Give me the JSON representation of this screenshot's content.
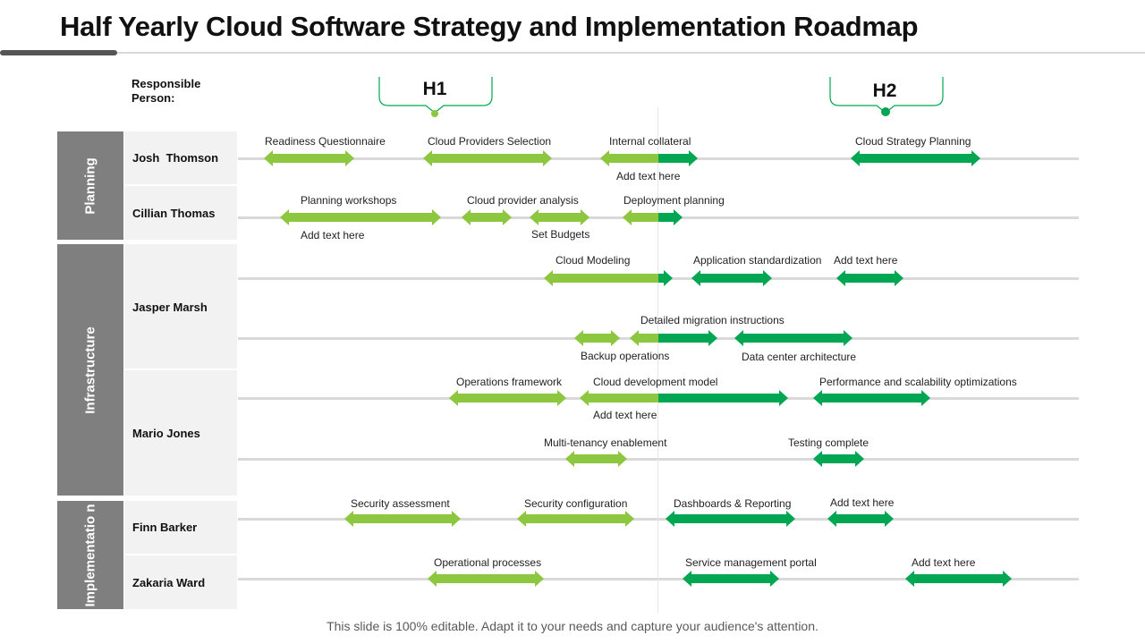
{
  "title": "Half Yearly Cloud Software Strategy and Implementation Roadmap",
  "responsible_label": "Responsible Person:",
  "halves": [
    "H1",
    "H2"
  ],
  "colors": {
    "light": "#8dc63f",
    "dark": "#00a651",
    "section": "#7f7f7f",
    "person_bg": "#f2f2f2",
    "line": "#d9d9d9"
  },
  "sections": [
    "Planning",
    "Infrastructure",
    "Implementatio n"
  ],
  "people": [
    "Josh  Thomson",
    "Cillian Thomas",
    "Jasper Marsh",
    "Mario Jones",
    "Finn Barker",
    "Zakaria Ward"
  ],
  "tasks": [
    {
      "label": "Readiness Questionnaire",
      "color": "light"
    },
    {
      "label": "Cloud Providers Selection",
      "color": "light"
    },
    {
      "label": "Internal collateral",
      "color": "mixed"
    },
    {
      "label": "Add text here",
      "color": ""
    },
    {
      "label": "Cloud Strategy Planning",
      "color": "dark"
    },
    {
      "label": "Planning workshops",
      "color": "light"
    },
    {
      "label": "Add text here",
      "color": ""
    },
    {
      "label": "Cloud provider analysis",
      "color": "light"
    },
    {
      "label": "Set Budgets",
      "color": "light"
    },
    {
      "label": "Deployment planning",
      "color": "mixed"
    },
    {
      "label": "Cloud Modeling",
      "color": "mixed"
    },
    {
      "label": "Application standardization",
      "color": "dark"
    },
    {
      "label": "Add text here",
      "color": "dark"
    },
    {
      "label": "Detailed migration instructions",
      "color": "mixed"
    },
    {
      "label": "Backup operations",
      "color": "light"
    },
    {
      "label": "Data center architecture",
      "color": "dark"
    },
    {
      "label": "Operations framework",
      "color": "light"
    },
    {
      "label": "Cloud development model",
      "color": "mixed"
    },
    {
      "label": "Add text here",
      "color": ""
    },
    {
      "label": "Performance and scalability optimizations",
      "color": "dark"
    },
    {
      "label": "Multi-tenancy enablement",
      "color": "light"
    },
    {
      "label": "Testing complete",
      "color": "dark"
    },
    {
      "label": "Security assessment",
      "color": "light"
    },
    {
      "label": "Security configuration",
      "color": "light"
    },
    {
      "label": "Dashboards & Reporting",
      "color": "dark"
    },
    {
      "label": "Add text here",
      "color": "dark"
    },
    {
      "label": "Operational processes",
      "color": "light"
    },
    {
      "label": "Service management portal",
      "color": "dark"
    },
    {
      "label": "Add text here",
      "color": "dark"
    }
  ],
  "footer": "This slide is 100% editable. Adapt it to your needs and capture your audience's attention."
}
